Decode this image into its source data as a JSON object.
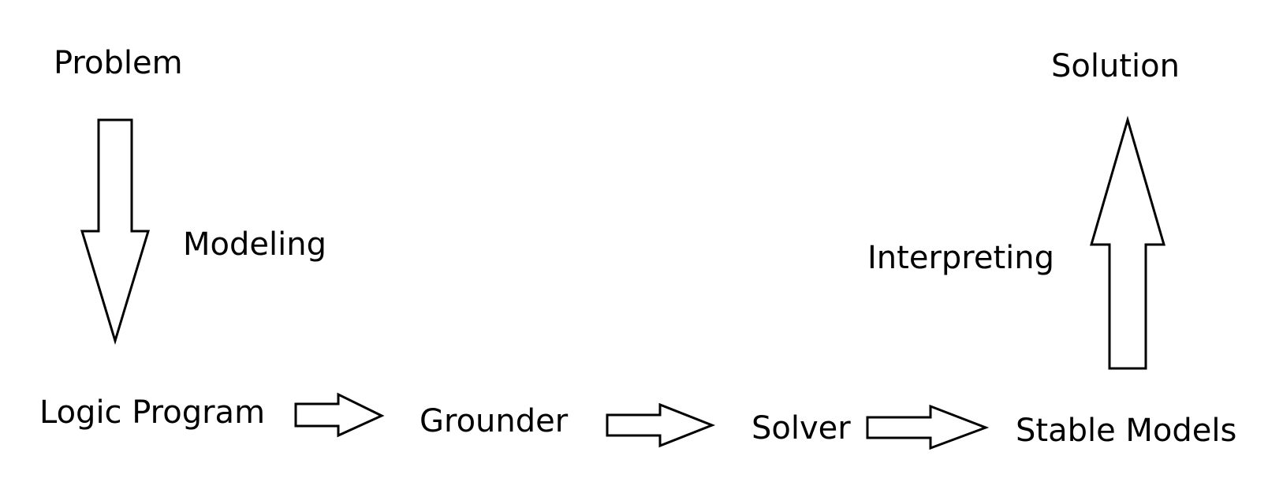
{
  "nodes": {
    "problem": "Problem",
    "logic_program": "Logic Program",
    "grounder": "Grounder",
    "solver": "Solver",
    "stable_models": "Stable Models",
    "solution": "Solution"
  },
  "edges": {
    "modeling": "Modeling",
    "interpreting": "Interpreting"
  },
  "colors": {
    "stroke": "#000000",
    "fill": "#ffffff",
    "text": "#000000"
  }
}
